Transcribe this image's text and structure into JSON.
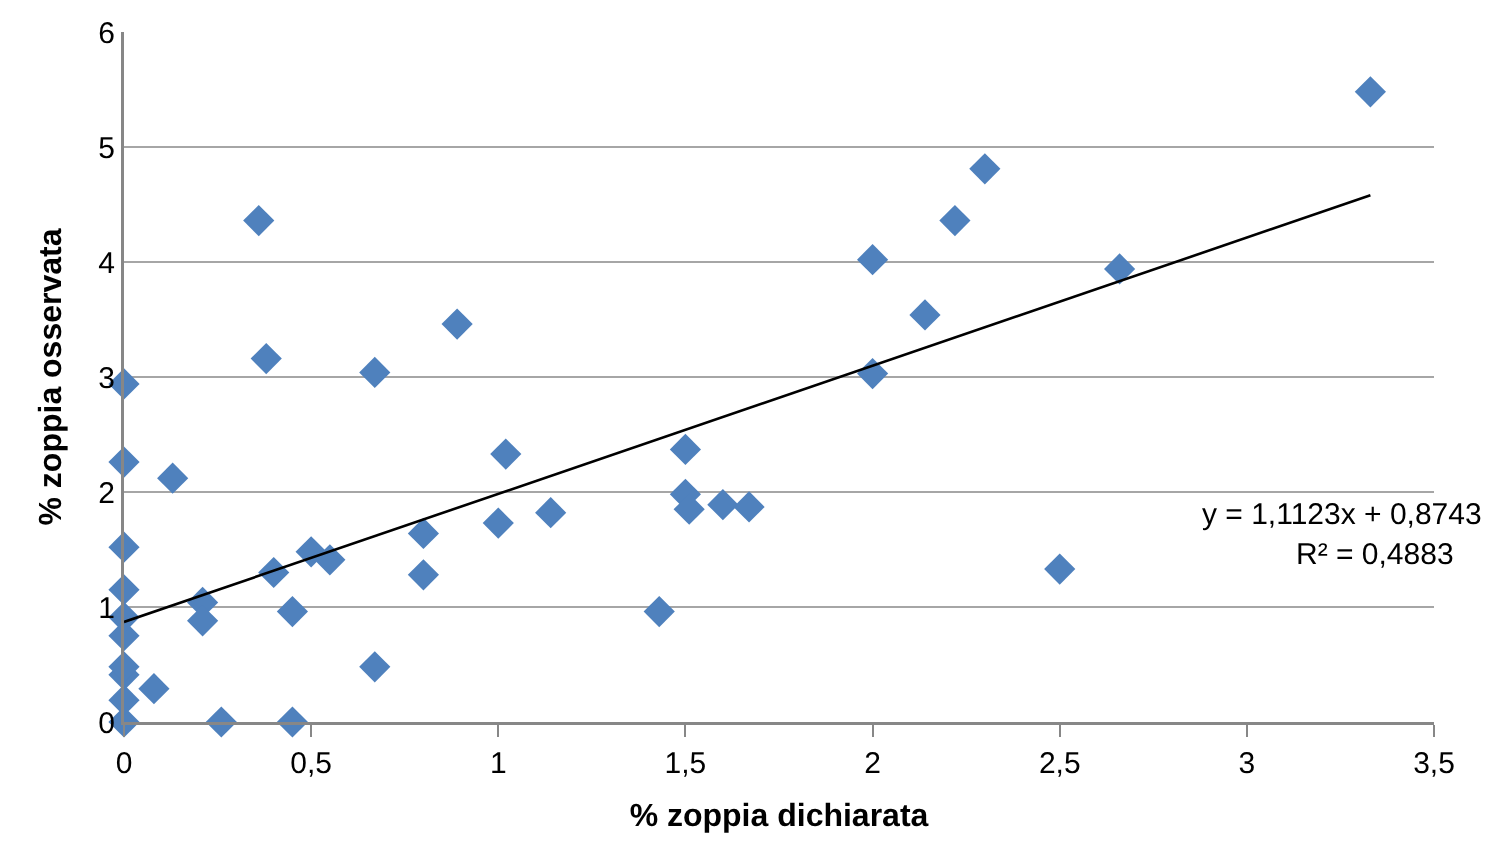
{
  "chart_data": {
    "type": "scatter",
    "xlabel": "% zoppia dichiarata",
    "ylabel": "% zoppia osservata",
    "xlim": [
      0,
      3.5
    ],
    "xticks": [
      0,
      {
        "value": 0.5,
        "label": "0,5"
      },
      1,
      {
        "value": 1.5,
        "label": "1,5"
      },
      2,
      {
        "value": 2.5,
        "label": "2,5"
      },
      3,
      {
        "value": 3.5,
        "label": "3,5"
      }
    ],
    "ylim": [
      0,
      6
    ],
    "yticks": [
      0,
      1,
      2,
      3,
      4,
      5,
      6
    ],
    "grid": "y",
    "legend": false,
    "marker": "diamond",
    "series": [
      {
        "color": "#4f81bd",
        "x": [
          0,
          0,
          0,
          0,
          0,
          0,
          0,
          0,
          0,
          0,
          0.08,
          0.13,
          0.21,
          0.21,
          0.26,
          0.36,
          0.38,
          0.4,
          0.45,
          0.45,
          0.5,
          0.55,
          0.67,
          0.67,
          0.8,
          0.8,
          0.89,
          1,
          1.02,
          1.14,
          1.43,
          1.5,
          1.5,
          1.51,
          1.6,
          1.67,
          2,
          2,
          2.14,
          2.22,
          2.3,
          2.5,
          2.66,
          3.33
        ],
        "values": [
          0,
          0.19,
          0.41,
          0.48,
          0.75,
          0.91,
          1.15,
          1.52,
          2.26,
          2.94,
          0.29,
          2.12,
          1.04,
          0.88,
          0,
          4.36,
          3.16,
          1.3,
          0.96,
          0,
          1.48,
          1.41,
          0.48,
          3.04,
          1.64,
          1.28,
          3.46,
          1.73,
          2.33,
          1.82,
          0.96,
          2.37,
          1.98,
          1.85,
          1.89,
          1.87,
          3.03,
          4.02,
          3.54,
          4.36,
          4.81,
          1.33,
          3.94,
          5.48
        ]
      },
      {
        "type": "line",
        "color": "#000000",
        "marker": "none",
        "x": [
          0,
          3.33
        ],
        "values": [
          0.87,
          4.58
        ]
      }
    ],
    "annotations": [
      "y = 1,1123x + 0,8743",
      "R² = 0,4883"
    ]
  }
}
